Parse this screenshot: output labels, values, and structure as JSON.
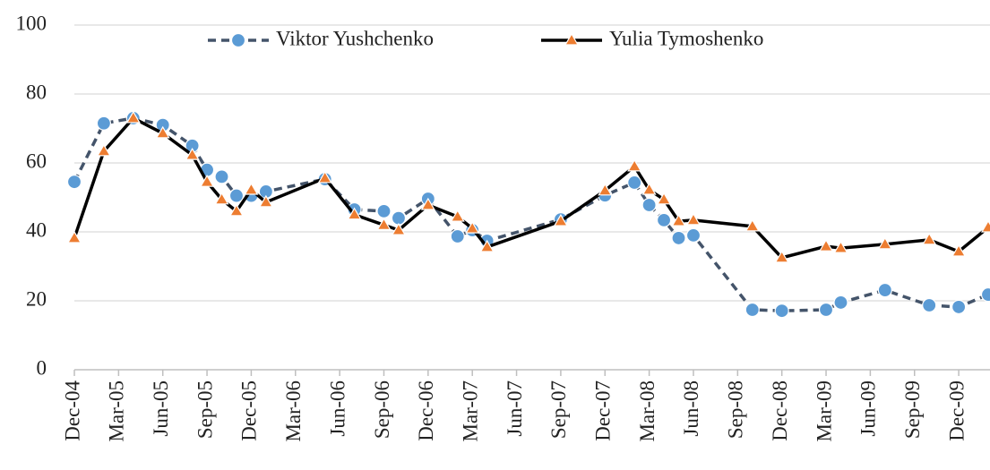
{
  "chart_data": {
    "type": "line",
    "x": [
      "2004-12",
      "2005-02",
      "2005-04",
      "2005-06",
      "2005-08",
      "2005-09",
      "2005-10",
      "2005-11",
      "2005-12",
      "2006-01",
      "2006-05",
      "2006-07",
      "2006-09",
      "2006-10",
      "2006-12",
      "2007-02",
      "2007-03",
      "2007-04",
      "2007-09",
      "2007-12",
      "2008-02",
      "2008-03",
      "2008-04",
      "2008-05",
      "2008-06",
      "2008-10",
      "2008-12",
      "2009-03",
      "2009-04",
      "2009-07",
      "2009-10",
      "2009-12",
      "2010-02"
    ],
    "series": [
      {
        "name": "Viktor Yushchenko",
        "color": "#44546a",
        "marker_color": "#5b9bd5",
        "marker": "circle",
        "dashed": true,
        "values": [
          54.5,
          71.5,
          73,
          71,
          65,
          58,
          56,
          50.5,
          50.5,
          51.7,
          55.3,
          46.5,
          46,
          44,
          49.6,
          38.7,
          40.5,
          37.4,
          43.6,
          50.6,
          54.3,
          47.8,
          43.4,
          38.2,
          39,
          17.4,
          17.1,
          17.4,
          19.5,
          23.1,
          18.7,
          18.2,
          21.8
        ]
      },
      {
        "name": "Yulia Tymoshenko",
        "color": "#000000",
        "marker_color": "#ed7d31",
        "marker": "triangle",
        "dashed": false,
        "values": [
          38.2,
          63.4,
          73,
          68.6,
          62.3,
          54.5,
          49.4,
          46,
          52.2,
          48.6,
          55.6,
          45,
          42,
          40.5,
          47.8,
          44.4,
          41,
          35.6,
          43.1,
          52,
          59,
          52.2,
          49.4,
          43.1,
          43.4,
          41.6,
          32.5,
          35.8,
          35.3,
          36.4,
          37.7,
          34.3,
          41.3
        ]
      }
    ],
    "xlim": [
      "2004-12",
      "2010-02"
    ],
    "xticks": [
      {
        "value": "2004-12",
        "label": "Dec-04"
      },
      {
        "value": "2005-03",
        "label": "Mar-05"
      },
      {
        "value": "2005-06",
        "label": "Jun-05"
      },
      {
        "value": "2005-09",
        "label": "Sep-05"
      },
      {
        "value": "2005-12",
        "label": "Dec-05"
      },
      {
        "value": "2006-03",
        "label": "Mar-06"
      },
      {
        "value": "2006-06",
        "label": "Jun-06"
      },
      {
        "value": "2006-09",
        "label": "Sep-06"
      },
      {
        "value": "2006-12",
        "label": "Dec-06"
      },
      {
        "value": "2007-03",
        "label": "Mar-07"
      },
      {
        "value": "2007-06",
        "label": "Jun-07"
      },
      {
        "value": "2007-09",
        "label": "Sep-07"
      },
      {
        "value": "2007-12",
        "label": "Dec-07"
      },
      {
        "value": "2008-03",
        "label": "Mar-08"
      },
      {
        "value": "2008-06",
        "label": "Jun-08"
      },
      {
        "value": "2008-09",
        "label": "Sep-08"
      },
      {
        "value": "2008-12",
        "label": "Dec-08"
      },
      {
        "value": "2009-03",
        "label": "Mar-09"
      },
      {
        "value": "2009-06",
        "label": "Jun-09"
      },
      {
        "value": "2009-09",
        "label": "Sep-09"
      },
      {
        "value": "2009-12",
        "label": "Dec-09"
      }
    ],
    "ylim": [
      0,
      100
    ],
    "yticks": [
      0,
      20,
      40,
      60,
      80,
      100
    ],
    "grid": true,
    "legend": "top"
  }
}
